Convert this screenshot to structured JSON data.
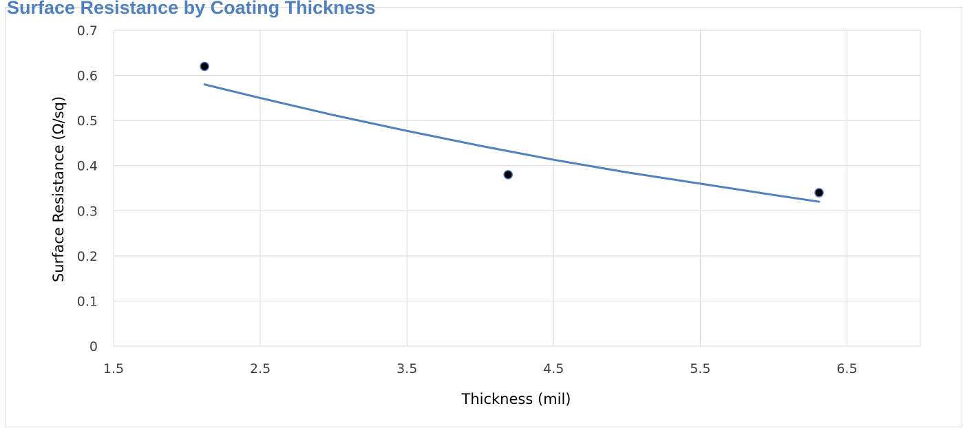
{
  "chart_data": {
    "type": "scatter",
    "title": "Surface Resistance by Coating Thickness",
    "xlabel": "Thickness (mil)",
    "ylabel": "Surface Resistance (Ω/sq)",
    "xlim": [
      1.5,
      7.0
    ],
    "ylim": [
      0,
      0.7
    ],
    "x_ticks": [
      "1.5",
      "2.5",
      "3.5",
      "4.5",
      "5.5",
      "6.5"
    ],
    "y_ticks": [
      "0",
      "0.1",
      "0.2",
      "0.3",
      "0.4",
      "0.5",
      "0.6",
      "0.7"
    ],
    "grid": true,
    "legend": "none",
    "series": [
      {
        "x": [
          2.12,
          4.19,
          6.31
        ],
        "y": [
          0.62,
          0.38,
          0.34
        ]
      }
    ],
    "trendline": {
      "type": "power",
      "x": [
        2.12,
        2.5,
        3.0,
        3.5,
        4.0,
        4.5,
        5.0,
        5.5,
        6.0,
        6.31
      ],
      "y": [
        0.58,
        0.55,
        0.512,
        0.477,
        0.444,
        0.413,
        0.385,
        0.36,
        0.335,
        0.32
      ]
    },
    "colors": {
      "marker": "#000000",
      "marker_edge": "#4472c4",
      "trendline": "#4f81bd",
      "grid": "#d9d9d9",
      "title": "#4f81bd"
    }
  }
}
